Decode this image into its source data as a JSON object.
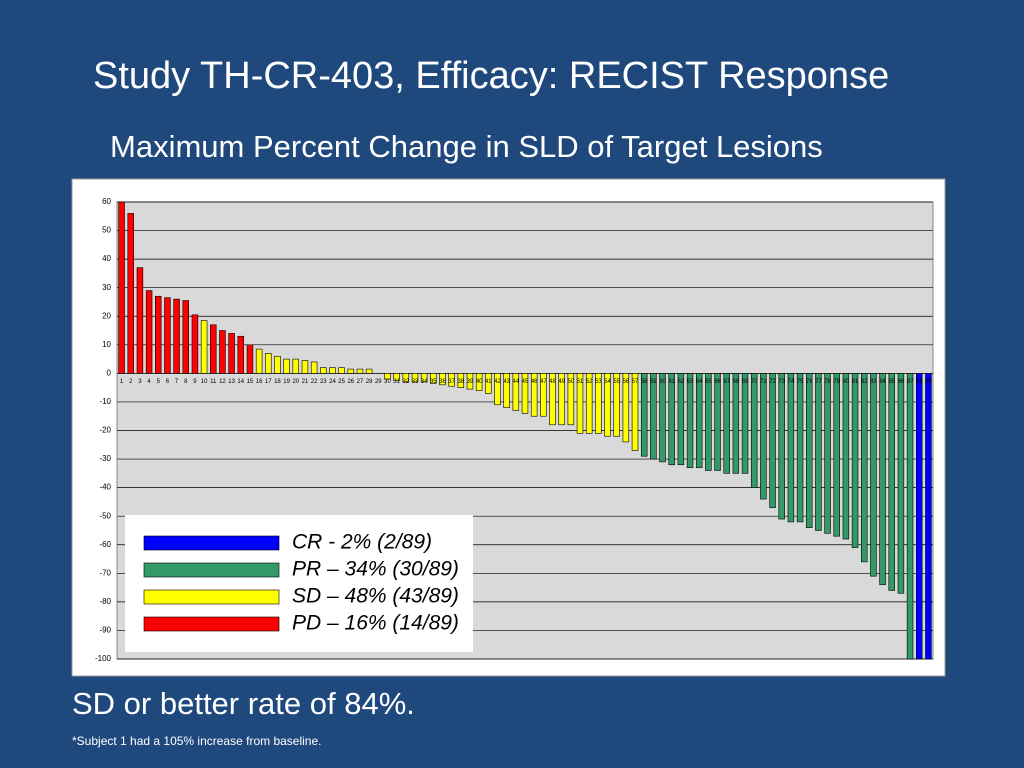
{
  "title": "Study TH-CR-403, Efficacy:  RECIST Response",
  "footer": "SD or better rate of 84%.",
  "footnote": "*Subject 1 had a 105% increase from baseline.",
  "chart_data": {
    "type": "bar",
    "title": "Maximum Percent Change in SLD of Target Lesions",
    "categories": [
      "1",
      "2",
      "3",
      "4",
      "5",
      "6",
      "7",
      "8",
      "9",
      "10",
      "11",
      "12",
      "13",
      "14",
      "15",
      "16",
      "17",
      "18",
      "19",
      "20",
      "21",
      "22",
      "23",
      "24",
      "25",
      "26",
      "27",
      "28",
      "29",
      "30",
      "31",
      "32",
      "33",
      "34",
      "35",
      "36",
      "37",
      "38",
      "39",
      "40",
      "41",
      "42",
      "43",
      "44",
      "45",
      "46",
      "47",
      "48",
      "49",
      "50",
      "51",
      "52",
      "53",
      "54",
      "55",
      "56",
      "57",
      "58",
      "59",
      "60",
      "61",
      "62",
      "63",
      "64",
      "65",
      "66",
      "67",
      "68",
      "69",
      "70",
      "71",
      "72",
      "73",
      "74",
      "75",
      "76",
      "77",
      "78",
      "79",
      "80",
      "81",
      "82",
      "83",
      "84",
      "85",
      "86",
      "87",
      "88",
      "89"
    ],
    "values": [
      60,
      56,
      37,
      29,
      27,
      26.5,
      26,
      25.5,
      20.5,
      18.5,
      17,
      15,
      14,
      13,
      10,
      8.5,
      7,
      6,
      5,
      5,
      4.5,
      4,
      2,
      2,
      2,
      1.5,
      1.5,
      1.5,
      0,
      -2,
      -2.5,
      -3,
      -3,
      -3,
      -3.5,
      -4,
      -4.5,
      -5,
      -5.5,
      -6,
      -7,
      -11,
      -12,
      -13,
      -14,
      -15,
      -15,
      -18,
      -18,
      -18,
      -21,
      -21,
      -21,
      -22,
      -22,
      -24,
      -27,
      -29,
      -30,
      -31,
      -32,
      -32,
      -33,
      -33,
      -34,
      -34,
      -35,
      -35,
      -35,
      -40,
      -44,
      -47,
      -51,
      -52,
      -52,
      -54,
      -55,
      -56,
      -57,
      -58,
      -61,
      -66,
      -71,
      -74,
      -76,
      -77,
      -100,
      -100,
      -100
    ],
    "colors": [
      "#ff0000",
      "#ff0000",
      "#ff0000",
      "#ff0000",
      "#ff0000",
      "#ff0000",
      "#ff0000",
      "#ff0000",
      "#ff0000",
      "#ffff00",
      "#ff0000",
      "#ff0000",
      "#ff0000",
      "#ff0000",
      "#ff0000",
      "#ffff00",
      "#ffff00",
      "#ffff00",
      "#ffff00",
      "#ffff00",
      "#ffff00",
      "#ffff00",
      "#ffff00",
      "#ffff00",
      "#ffff00",
      "#ffff00",
      "#ffff00",
      "#ffff00",
      "#ffff00",
      "#ffff00",
      "#ffff00",
      "#ffff00",
      "#ffff00",
      "#ffff00",
      "#ffff00",
      "#ffff00",
      "#ffff00",
      "#ffff00",
      "#ffff00",
      "#ffff00",
      "#ffff00",
      "#ffff00",
      "#ffff00",
      "#ffff00",
      "#ffff00",
      "#ffff00",
      "#ffff00",
      "#ffff00",
      "#ffff00",
      "#ffff00",
      "#ffff00",
      "#ffff00",
      "#ffff00",
      "#ffff00",
      "#ffff00",
      "#ffff00",
      "#ffff00",
      "#339966",
      "#339966",
      "#339966",
      "#339966",
      "#339966",
      "#339966",
      "#339966",
      "#339966",
      "#339966",
      "#339966",
      "#339966",
      "#339966",
      "#339966",
      "#339966",
      "#339966",
      "#339966",
      "#339966",
      "#339966",
      "#339966",
      "#339966",
      "#339966",
      "#339966",
      "#339966",
      "#339966",
      "#339966",
      "#339966",
      "#339966",
      "#339966",
      "#339966",
      "#339966",
      "#0000ff",
      "#0000ff"
    ],
    "ylim": [
      -100,
      60
    ],
    "yticks": [
      -100,
      -90,
      -80,
      -70,
      -60,
      -50,
      -40,
      -30,
      -20,
      -10,
      0,
      10,
      20,
      30,
      40,
      50,
      60
    ],
    "grid": true,
    "legend": [
      {
        "label": "CR - 2% (2/89)",
        "color": "#0000ff"
      },
      {
        "label": "PR – 34% (30/89)",
        "color": "#339966"
      },
      {
        "label": "SD – 48% (43/89)",
        "color": "#ffff00"
      },
      {
        "label": "PD – 16% (14/89)",
        "color": "#ff0000"
      }
    ]
  }
}
